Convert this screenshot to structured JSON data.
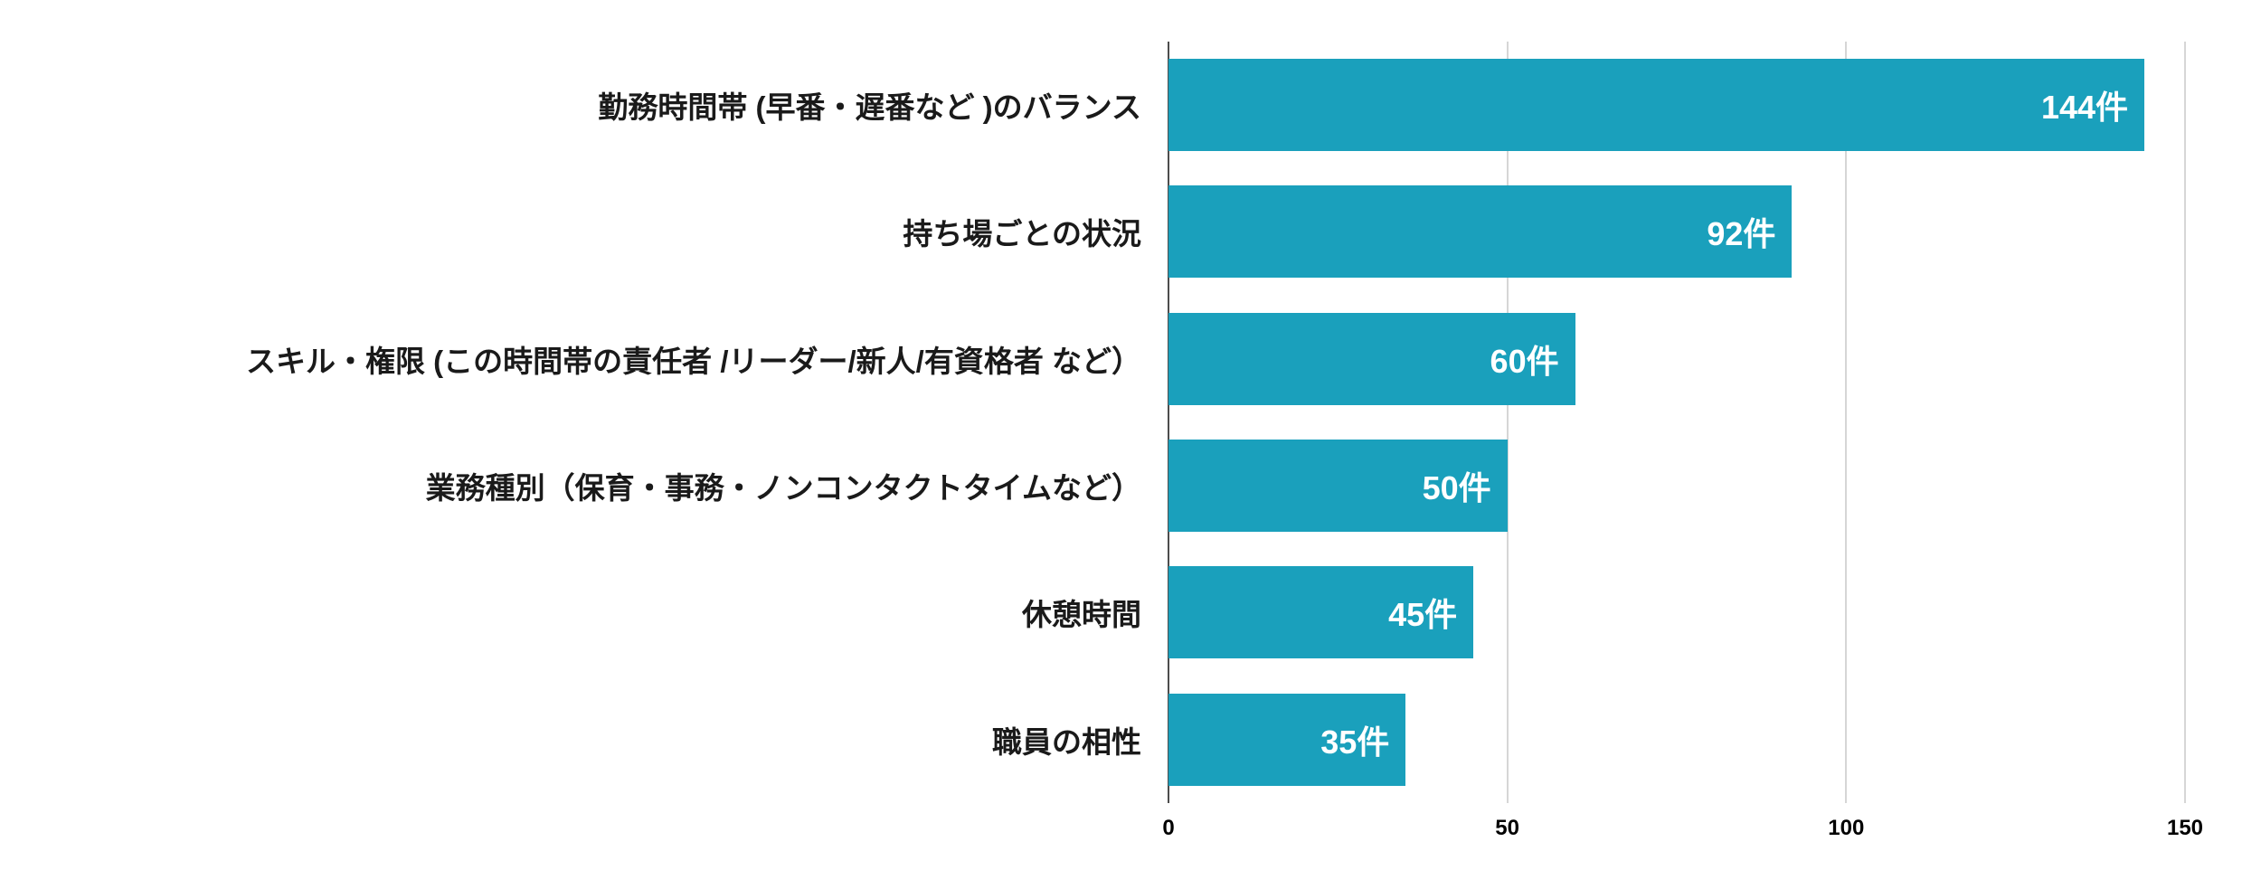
{
  "chart_data": {
    "type": "bar",
    "orientation": "horizontal",
    "title": "",
    "xlabel": "",
    "ylabel": "",
    "unit": "件",
    "categories": [
      "勤務時間帯 (早番・遅番など )のバランス",
      "持ち場ごとの状況",
      "スキル・権限 (この時間帯の責任者 /リーダー/新人/有資格者 など）",
      "業務種別（保育・事務・ノンコンタクトタイムなど）",
      "休憩時間",
      "職員の相性"
    ],
    "values": [
      144,
      92,
      60,
      50,
      45,
      35
    ],
    "data_labels": [
      "144件",
      "92件",
      "60件",
      "50件",
      "45件",
      "35件"
    ],
    "xlim": [
      0,
      150
    ],
    "ticks": [
      0,
      50,
      100,
      150
    ],
    "tick_labels": [
      "0",
      "50",
      "100",
      "150"
    ],
    "grid": "vertical",
    "legend": "none",
    "bar_color": "#1AA0BC",
    "axis_line_color": "#4d4d4d",
    "gridline_color": "#d6d6d6",
    "label_color": "#1a1a1a",
    "value_label_color": "#ffffff",
    "background_color": "#ffffff"
  }
}
